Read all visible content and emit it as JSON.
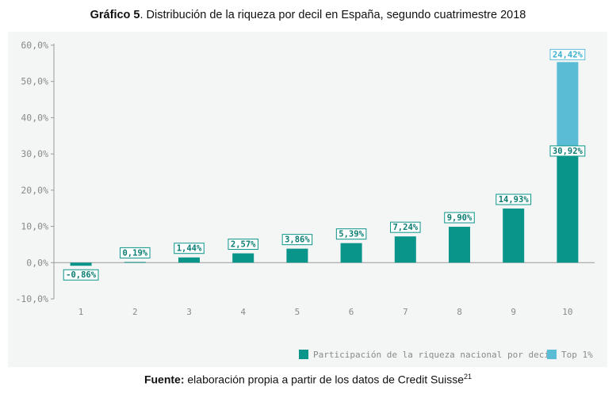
{
  "header": {
    "title_bold": "Gráfico 5",
    "title_rest": ". Distribución de la riqueza por decil en España, segundo cuatrimestre 2018"
  },
  "footer": {
    "source_bold": "Fuente:",
    "source_rest": " elaboración propia a partir de los datos de Credit Suisse",
    "source_sup": "21"
  },
  "colors": {
    "decile": "#0a958a",
    "top1": "#5bbcd6"
  },
  "chart_data": {
    "type": "bar",
    "stacked": true,
    "categories": [
      "1",
      "2",
      "3",
      "4",
      "5",
      "6",
      "7",
      "8",
      "9",
      "10"
    ],
    "series": [
      {
        "name": "Participación de la riqueza nacional por decil",
        "values": [
          -0.86,
          0.19,
          1.44,
          2.57,
          3.86,
          5.39,
          7.24,
          9.9,
          14.93,
          30.92
        ],
        "labels": [
          "-0,86%",
          "0,19%",
          "1,44%",
          "2,57%",
          "3,86%",
          "5,39%",
          "7,24%",
          "9,90%",
          "14,93%",
          "30,92%"
        ]
      },
      {
        "name": "Top 1%",
        "values": [
          null,
          null,
          null,
          null,
          null,
          null,
          null,
          null,
          null,
          24.42
        ],
        "labels": [
          "",
          "",
          "",
          "",
          "",
          "",
          "",
          "",
          "",
          "24,42%"
        ]
      }
    ],
    "y_ticks": [
      "60,0%",
      "50,0%",
      "40,0%",
      "30,0%",
      "20,0%",
      "10,0%",
      "0,0%",
      "-10,0%"
    ],
    "ylim": [
      -10,
      60
    ],
    "grid": false,
    "legend_position": "bottom-right"
  }
}
